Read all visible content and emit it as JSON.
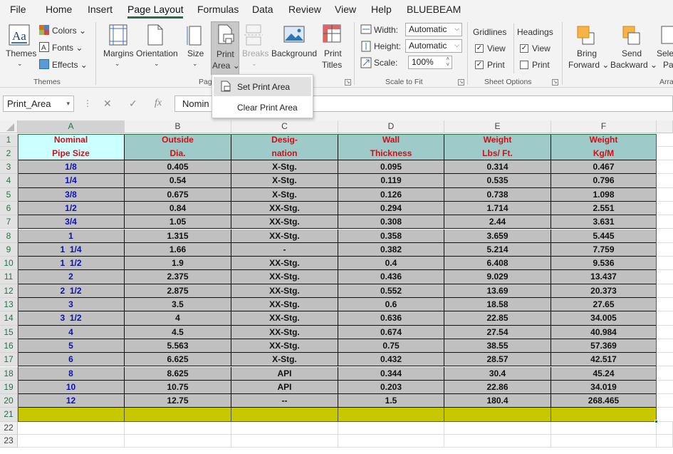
{
  "menu": {
    "tabs": [
      "File",
      "Home",
      "Insert",
      "Page Layout",
      "Formulas",
      "Data",
      "Review",
      "View",
      "Help",
      "BLUEBEAM"
    ],
    "active": "Page Layout"
  },
  "ribbon": {
    "themes": {
      "themes_label": "Themes",
      "colors_label": "Colors",
      "fonts_label": "Fonts",
      "effects_label": "Effects",
      "group": "Themes"
    },
    "page_setup": {
      "margins": "Margins",
      "orientation": "Orientation",
      "size": "Size",
      "print_area_1": "Print",
      "print_area_2": "Area",
      "breaks": "Breaks",
      "background": "Background",
      "print_titles_1": "Print",
      "print_titles_2": "Titles",
      "group": "Pag"
    },
    "scale_to_fit": {
      "width_label": "Width:",
      "width_value": "Automatic",
      "height_label": "Height:",
      "height_value": "Automatic",
      "scale_label": "Scale:",
      "scale_value": "100%",
      "group": "Scale to Fit"
    },
    "sheet_options": {
      "gridlines": "Gridlines",
      "headings": "Headings",
      "view": "View",
      "print": "Print",
      "group": "Sheet Options"
    },
    "arrange": {
      "bring_forward_1": "Bring",
      "bring_forward_2": "Forward",
      "send_backward_1": "Send",
      "send_backward_2": "Backward",
      "selection_1": "Sele",
      "selection_2": "Pa",
      "group": "Arra"
    }
  },
  "dropdown": {
    "set_print_area": "Set Print Area",
    "clear_print_area": "Clear Print Area"
  },
  "formula_bar": {
    "name_box": "Print_Area",
    "cancel": "✕",
    "enter": "✓",
    "fx": "fx",
    "content": "Nomin"
  },
  "columns": [
    "A",
    "B",
    "C",
    "D",
    "E",
    "F"
  ],
  "rows": [
    "1",
    "2",
    "3",
    "4",
    "5",
    "6",
    "7",
    "8",
    "9",
    "10",
    "11",
    "12",
    "13",
    "14",
    "15",
    "16",
    "17",
    "18",
    "19",
    "20",
    "21",
    "22",
    "23"
  ],
  "colors": {
    "header_fill": "#9ecaca",
    "a_header_fill": "#ccffff",
    "data_fill": "#c0c0c0",
    "yellow_fill": "#c8c800",
    "accent": "#217346"
  },
  "table": {
    "headers": [
      [
        "Nominal",
        "Pipe Size"
      ],
      [
        "Outside",
        "Dia."
      ],
      [
        "Desig-",
        "nation"
      ],
      [
        "Wall",
        "Thickness"
      ],
      [
        "Weight",
        "Lbs/ Ft."
      ],
      [
        "Weight",
        "Kg/M"
      ]
    ],
    "data": [
      [
        "1/8",
        "0.405",
        "X-Stg.",
        "0.095",
        "0.314",
        "0.467"
      ],
      [
        "1/4",
        "0.54",
        "X-Stg.",
        "0.119",
        "0.535",
        "0.796"
      ],
      [
        "3/8",
        "0.675",
        "X-Stg.",
        "0.126",
        "0.738",
        "1.098"
      ],
      [
        "1/2",
        "0.84",
        "XX-Stg.",
        "0.294",
        "1.714",
        "2.551"
      ],
      [
        "3/4",
        "1.05",
        "XX-Stg.",
        "0.308",
        "2.44",
        "3.631"
      ],
      [
        "1",
        "1.315",
        "XX-Stg.",
        "0.358",
        "3.659",
        "5.445"
      ],
      [
        "1  1/4",
        "1.66",
        "-",
        "0.382",
        "5.214",
        "7.759"
      ],
      [
        "1  1/2",
        "1.9",
        "XX-Stg.",
        "0.4",
        "6.408",
        "9.536"
      ],
      [
        "2",
        "2.375",
        "XX-Stg.",
        "0.436",
        "9.029",
        "13.437"
      ],
      [
        "2  1/2",
        "2.875",
        "XX-Stg.",
        "0.552",
        "13.69",
        "20.373"
      ],
      [
        "3",
        "3.5",
        "XX-Stg.",
        "0.6",
        "18.58",
        "27.65"
      ],
      [
        "3  1/2",
        "4",
        "XX-Stg.",
        "0.636",
        "22.85",
        "34.005"
      ],
      [
        "4",
        "4.5",
        "XX-Stg.",
        "0.674",
        "27.54",
        "40.984"
      ],
      [
        "5",
        "5.563",
        "XX-Stg.",
        "0.75",
        "38.55",
        "57.369"
      ],
      [
        "6",
        "6.625",
        "X-Stg.",
        "0.432",
        "28.57",
        "42.517"
      ],
      [
        "8",
        "8.625",
        "API",
        "0.344",
        "30.4",
        "45.24"
      ],
      [
        "10",
        "10.75",
        "API",
        "0.203",
        "22.86",
        "34.019"
      ],
      [
        "12",
        "12.75",
        "--",
        "1.5",
        "180.4",
        "268.465"
      ]
    ]
  }
}
